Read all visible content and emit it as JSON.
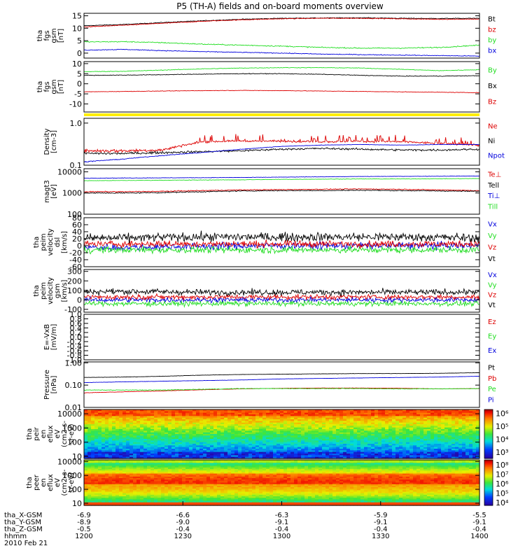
{
  "title": "P5 (TH-A) fields and on-board moments overview",
  "colors": {
    "black": "#000000",
    "red": "#dd0000",
    "green": "#22dd22",
    "blue": "#0000dd",
    "yellow": "#ffee00"
  },
  "chart_data": [
    {
      "id": "fgs_gsm",
      "type": "line",
      "ylabel": [
        "tha",
        "fgs",
        "gsm",
        "[nT]"
      ],
      "ylim": [
        -2,
        16
      ],
      "yscale": "linear",
      "ticks": [
        {
          "v": 15,
          "t": "15"
        },
        {
          "v": 10,
          "t": "10"
        },
        {
          "v": 5,
          "t": "5"
        },
        {
          "v": 0,
          "t": "0"
        }
      ],
      "series": [
        {
          "name": "Bt",
          "label": "Bt",
          "color": "black",
          "profile": [
            11,
            11.5,
            12.3,
            13,
            13.6,
            14,
            14.1,
            14.2,
            14,
            13.9,
            14
          ],
          "noise": 0.15
        },
        {
          "name": "bz",
          "label": "bz",
          "color": "red",
          "profile": [
            10.5,
            11.2,
            12,
            12.8,
            13.4,
            13.8,
            14,
            14,
            13.8,
            13.6,
            13.7
          ],
          "noise": 0.15
        },
        {
          "name": "by",
          "label": "by",
          "color": "green",
          "profile": [
            4.5,
            4.6,
            4.2,
            3.6,
            3.2,
            2.8,
            2.3,
            2,
            2,
            2.3,
            3.2
          ],
          "noise": 0.2
        },
        {
          "name": "bx",
          "label": "bx",
          "color": "blue",
          "profile": [
            1.2,
            1.5,
            1,
            0.6,
            0.3,
            0,
            -0.4,
            -0.6,
            -0.8,
            -1,
            -1.2
          ],
          "noise": 0.15
        }
      ]
    },
    {
      "id": "fgs_sm",
      "type": "line",
      "ylabel": [
        "tha",
        "fgs",
        "gsm",
        "[nT]"
      ],
      "ylim": [
        -14,
        11
      ],
      "yscale": "linear",
      "ticks": [
        {
          "v": 10,
          "t": "10"
        },
        {
          "v": 5,
          "t": "5"
        },
        {
          "v": 0,
          "t": "0"
        },
        {
          "v": -5,
          "t": "-5"
        },
        {
          "v": -10,
          "t": "-10"
        }
      ],
      "series": [
        {
          "name": "By",
          "label": "By",
          "color": "green",
          "profile": [
            6,
            6.2,
            6.8,
            7.4,
            7.8,
            8,
            8,
            7.8,
            7.2,
            6.5,
            7
          ],
          "noise": 0.15
        },
        {
          "name": "Bx",
          "label": "Bx",
          "color": "black",
          "profile": [
            4.2,
            4.3,
            4.5,
            4.8,
            5,
            5,
            4.7,
            4.2,
            3.8,
            3.8,
            4
          ],
          "noise": 0.15
        },
        {
          "name": "Bz",
          "label": "Bz",
          "color": "red",
          "profile": [
            -4,
            -3.8,
            -3.6,
            -3.4,
            -3.3,
            -3.4,
            -3.6,
            -3.8,
            -4,
            -4.2,
            -4.4
          ],
          "noise": 0.12
        }
      ]
    },
    {
      "id": "density",
      "type": "line",
      "ylabel": [
        "Density",
        "[cm-3]"
      ],
      "yscale": "log",
      "ylim": [
        0.1,
        1.3
      ],
      "ticks": [
        {
          "v": 1,
          "t": "1.0"
        },
        {
          "v": 0.1,
          "t": "0.1"
        }
      ],
      "series": [
        {
          "name": "Ne",
          "label": "Ne",
          "color": "red",
          "profile": [
            0.22,
            0.22,
            0.23,
            0.36,
            0.38,
            0.37,
            0.36,
            0.37,
            0.36,
            0.33,
            0.3
          ],
          "noise": 0.02
        },
        {
          "name": "Ni",
          "label": "Ni",
          "color": "black",
          "profile": [
            0.19,
            0.19,
            0.2,
            0.21,
            0.22,
            0.24,
            0.25,
            0.24,
            0.23,
            0.23,
            0.24
          ],
          "noise": 0.012
        },
        {
          "name": "Npot",
          "label": "Npot",
          "color": "blue",
          "profile": [
            0.12,
            0.14,
            0.17,
            0.2,
            0.24,
            0.28,
            0.3,
            0.31,
            0.3,
            0.31,
            0.31
          ],
          "noise": 0.003
        }
      ]
    },
    {
      "id": "temp",
      "type": "line",
      "ylabel": [
        "magt3",
        "[eV]"
      ],
      "yscale": "log",
      "ylim": [
        100,
        14000
      ],
      "ticks": [
        {
          "v": 10000,
          "t": "10000"
        },
        {
          "v": 1000,
          "t": "1000"
        },
        {
          "v": 100,
          "t": "100"
        }
      ],
      "series": [
        {
          "name": "Te_perp",
          "label": "Te⊥",
          "color": "red",
          "profile": [
            1150,
            1150,
            1200,
            1300,
            1400,
            1450,
            1500,
            1550,
            1500,
            1400,
            1300
          ],
          "noise": 60
        },
        {
          "name": "Te_par",
          "label": "Tell",
          "color": "black",
          "profile": [
            1000,
            1000,
            1050,
            1150,
            1250,
            1300,
            1300,
            1350,
            1300,
            1250,
            1200
          ],
          "noise": 60
        },
        {
          "name": "Ti_perp",
          "label": "Ti⊥",
          "color": "blue",
          "profile": [
            5000,
            5100,
            5200,
            5300,
            5400,
            5600,
            5800,
            6000,
            6100,
            6200,
            6300
          ],
          "noise": 120
        },
        {
          "name": "Ti_par",
          "label": "Till",
          "color": "green",
          "profile": [
            3800,
            3900,
            4000,
            4100,
            4200,
            4400,
            4500,
            4600,
            4600,
            4700,
            4800
          ],
          "noise": 100
        }
      ]
    },
    {
      "id": "velocity_dsl",
      "type": "line",
      "ylabel": [
        "tha",
        "peim",
        "velocity",
        "dsl",
        "[km/s]"
      ],
      "yscale": "linear",
      "ylim": [
        -60,
        80
      ],
      "ticks": [
        {
          "v": 80,
          "t": "80"
        },
        {
          "v": 60,
          "t": "60"
        },
        {
          "v": 40,
          "t": "40"
        },
        {
          "v": 20,
          "t": "20"
        },
        {
          "v": 0,
          "t": "0"
        },
        {
          "v": -20,
          "t": "-20"
        },
        {
          "v": -40,
          "t": "-40"
        },
        {
          "v": -60,
          "t": "-60"
        }
      ],
      "series": [
        {
          "name": "Vx",
          "label": "Vx",
          "color": "blue",
          "profile": [
            -5,
            -5,
            -3,
            -2,
            0,
            0,
            0,
            0,
            0,
            0,
            0
          ],
          "noise": 10
        },
        {
          "name": "Vy",
          "label": "Vy",
          "color": "green",
          "profile": [
            -12,
            -12,
            -12,
            -12,
            -12,
            -12,
            -12,
            -12,
            -12,
            -12,
            -12
          ],
          "noise": 9
        },
        {
          "name": "Vz",
          "label": "Vz",
          "color": "red",
          "profile": [
            5,
            5,
            5,
            5,
            5,
            5,
            5,
            5,
            5,
            5,
            5
          ],
          "noise": 9
        },
        {
          "name": "Vt",
          "label": "Vt",
          "color": "black",
          "profile": [
            22,
            22,
            24,
            25,
            25,
            25,
            25,
            25,
            25,
            24,
            22
          ],
          "noise": 12
        }
      ]
    },
    {
      "id": "velocity_gsm",
      "type": "line",
      "ylabel": [
        "tha",
        "peim",
        "velocity",
        "gsm",
        "[km/s]"
      ],
      "yscale": "linear",
      "ylim": [
        -130,
        320
      ],
      "ticks": [
        {
          "v": 300,
          "t": "300"
        },
        {
          "v": 200,
          "t": "200"
        },
        {
          "v": 100,
          "t": "100"
        },
        {
          "v": 0,
          "t": "0"
        },
        {
          "v": -100,
          "t": "-100"
        }
      ],
      "series": [
        {
          "name": "Vx",
          "label": "Vx",
          "color": "blue",
          "profile": [
            0,
            0,
            0,
            0,
            0,
            0,
            0,
            0,
            0,
            0,
            0
          ],
          "noise": 25
        },
        {
          "name": "Vy",
          "label": "Vy",
          "color": "green",
          "profile": [
            -40,
            -40,
            -40,
            -40,
            -40,
            -40,
            -40,
            -40,
            -40,
            -40,
            -40
          ],
          "noise": 25
        },
        {
          "name": "Vz",
          "label": "Vz",
          "color": "red",
          "profile": [
            30,
            30,
            30,
            30,
            30,
            30,
            30,
            30,
            30,
            30,
            30
          ],
          "noise": 25
        },
        {
          "name": "Vt",
          "label": "Vt",
          "color": "black",
          "profile": [
            85,
            90,
            85,
            80,
            80,
            80,
            80,
            80,
            80,
            80,
            85
          ],
          "noise": 30
        }
      ]
    },
    {
      "id": "efield",
      "type": "line",
      "ylabel": [
        "E=-VxB",
        "[mV/m]"
      ],
      "yscale": "linear",
      "ylim": [
        -1,
        1
      ],
      "ticks": [
        {
          "v": 1.0,
          "t": "1.0"
        },
        {
          "v": 0.8,
          "t": "0.8"
        },
        {
          "v": 0.6,
          "t": "0.6"
        },
        {
          "v": 0.4,
          "t": "0.4"
        },
        {
          "v": 0.2,
          "t": "0.2"
        },
        {
          "v": 0.0,
          "t": "0.0"
        },
        {
          "v": -0.2,
          "t": "-0.2"
        },
        {
          "v": -0.4,
          "t": "-0.4"
        },
        {
          "v": -0.6,
          "t": "-0.6"
        },
        {
          "v": -0.8,
          "t": "-0.8"
        },
        {
          "v": -1.0,
          "t": "-1.0"
        }
      ],
      "series": [
        {
          "name": "Ez",
          "label": "Ez",
          "color": "red",
          "profile": [],
          "noise": 0
        },
        {
          "name": "Ey",
          "label": "Ey",
          "color": "green",
          "profile": [],
          "noise": 0
        },
        {
          "name": "Ex",
          "label": "Ex",
          "color": "blue",
          "profile": [],
          "noise": 0
        }
      ]
    },
    {
      "id": "pressure",
      "type": "line",
      "ylabel": [
        "Pressure",
        "[nPa]"
      ],
      "yscale": "log",
      "ylim": [
        0.01,
        1.1
      ],
      "ticks": [
        {
          "v": 1,
          "t": "1.00"
        },
        {
          "v": 0.1,
          "t": "0.10"
        },
        {
          "v": 0.01,
          "t": "0.01"
        }
      ],
      "series": [
        {
          "name": "Pt",
          "label": "Pt",
          "color": "black",
          "profile": [
            0.22,
            0.23,
            0.25,
            0.28,
            0.3,
            0.31,
            0.32,
            0.33,
            0.33,
            0.34,
            0.36
          ],
          "noise": 0.004
        },
        {
          "name": "Pb",
          "label": "Pb",
          "color": "red",
          "profile": [
            0.045,
            0.05,
            0.055,
            0.062,
            0.068,
            0.072,
            0.074,
            0.074,
            0.072,
            0.068,
            0.07
          ],
          "noise": 0.001
        },
        {
          "name": "Pe",
          "label": "Pe",
          "color": "green",
          "profile": [
            0.06,
            0.06,
            0.06,
            0.065,
            0.07,
            0.07,
            0.07,
            0.07,
            0.068,
            0.068,
            0.07
          ],
          "noise": 0.002
        },
        {
          "name": "Pi",
          "label": "Pi",
          "color": "blue",
          "profile": [
            0.13,
            0.14,
            0.15,
            0.16,
            0.17,
            0.19,
            0.2,
            0.21,
            0.22,
            0.23,
            0.25
          ],
          "noise": 0.002
        }
      ]
    },
    {
      "id": "peir_eflux",
      "type": "heatmap",
      "ylabel": [
        "tha",
        "peir",
        "en",
        "eflux",
        "eV",
        "(cm2-s-",
        "sr-eV)"
      ],
      "yscale": "log",
      "ylim": [
        7,
        20000
      ],
      "ticks": [
        {
          "v": 10000,
          "t": "10000"
        },
        {
          "v": 1000,
          "t": "1000"
        },
        {
          "v": 100,
          "t": "100"
        },
        {
          "v": 10,
          "t": "10"
        }
      ],
      "colorbar": {
        "range_exp": [
          2.5,
          6.3
        ],
        "ticks": [
          {
            "v": 6,
            "t": "10⁶"
          },
          {
            "v": 5,
            "t": "10⁵"
          },
          {
            "v": 4,
            "t": "10⁴"
          },
          {
            "v": 3,
            "t": "10³"
          }
        ]
      }
    },
    {
      "id": "peer_eflux",
      "type": "heatmap",
      "ylabel": [
        "tha",
        "peer",
        "en",
        "eflux",
        "eV",
        "(cm2-s-",
        "sr-eV)"
      ],
      "yscale": "log",
      "ylim": [
        7,
        13000
      ],
      "ticks": [
        {
          "v": 10000,
          "t": "10000"
        },
        {
          "v": 1000,
          "t": "1000"
        },
        {
          "v": 100,
          "t": "100"
        },
        {
          "v": 10,
          "t": "10"
        }
      ],
      "colorbar": {
        "range_exp": [
          3.7,
          8.5
        ],
        "ticks": [
          {
            "v": 8,
            "t": "10⁸"
          },
          {
            "v": 7,
            "t": "10⁷"
          },
          {
            "v": 6,
            "t": "10⁶"
          },
          {
            "v": 5,
            "t": "10⁵"
          },
          {
            "v": 4,
            "t": "10⁴"
          }
        ]
      }
    }
  ],
  "x_axis": {
    "rows": [
      {
        "label": "tha_X-GSM",
        "values": [
          "-6.9",
          "-6.6",
          "-6.3",
          "-5.9",
          "-5.5"
        ]
      },
      {
        "label": "tha_Y-GSM",
        "values": [
          "-8.9",
          "-9.0",
          "-9.1",
          "-9.1",
          "-9.1"
        ]
      },
      {
        "label": "tha_Z-GSM",
        "values": [
          "-0.5",
          "-0.4",
          "-0.4",
          "-0.4",
          "-0.4"
        ]
      },
      {
        "label": "hhmm",
        "values": [
          "1200",
          "1230",
          "1300",
          "1330",
          "1400"
        ]
      }
    ],
    "date": "2010 Feb 21"
  }
}
